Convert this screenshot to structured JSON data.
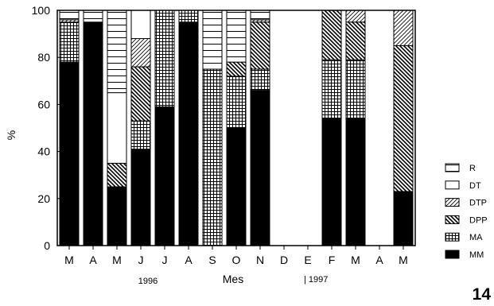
{
  "chart_data": {
    "type": "bar",
    "stacked": true,
    "categories": [
      "M",
      "A",
      "M",
      "J",
      "J",
      "A",
      "S",
      "O",
      "N",
      "D",
      "E",
      "F",
      "M",
      "A",
      "M"
    ],
    "xlabel": "Mes",
    "ylabel": "%",
    "ylim": [
      0,
      100
    ],
    "yticks": [
      "0",
      "20",
      "40",
      "60",
      "80",
      "100"
    ],
    "year_labels": [
      "1996",
      "| 1997"
    ],
    "figure_number": "14",
    "grid": false,
    "legend_position": "right",
    "series": [
      {
        "name": "MM",
        "pattern": "solid",
        "values": [
          78,
          95,
          25,
          41,
          59,
          95,
          0,
          50,
          66,
          0,
          0,
          54,
          54,
          0,
          23
        ]
      },
      {
        "name": "MA",
        "pattern": "grid",
        "values": [
          17,
          0,
          0,
          12,
          41,
          5,
          75,
          22,
          9,
          0,
          0,
          25,
          25,
          0,
          0
        ]
      },
      {
        "name": "DPP",
        "pattern": "back-hatch",
        "values": [
          0,
          0,
          10,
          23,
          0,
          0,
          0,
          6,
          20,
          0,
          0,
          21,
          16,
          0,
          62
        ]
      },
      {
        "name": "DTP",
        "pattern": "fwd-hatch",
        "values": [
          1,
          0,
          0,
          12,
          0,
          0,
          0,
          0,
          1,
          0,
          0,
          0,
          5,
          0,
          15
        ]
      },
      {
        "name": "DT",
        "pattern": "white",
        "values": [
          0,
          0,
          30,
          12,
          0,
          0,
          0,
          0,
          0,
          0,
          0,
          0,
          0,
          0,
          0
        ]
      },
      {
        "name": "R",
        "pattern": "horiz",
        "values": [
          4,
          5,
          35,
          0,
          0,
          0,
          25,
          22,
          4,
          0,
          0,
          0,
          0,
          0,
          0
        ]
      }
    ],
    "legend_order": [
      "R",
      "DT",
      "DTP",
      "DPP",
      "MA",
      "MM"
    ]
  }
}
